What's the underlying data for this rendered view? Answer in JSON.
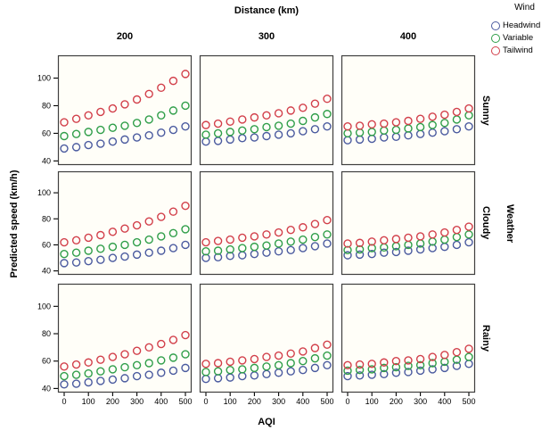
{
  "title": "Distance (km)",
  "legend": {
    "title": "Wind",
    "position": "top-right",
    "items": [
      {
        "label": "Headwind",
        "color": "#4a5a9f"
      },
      {
        "label": "Variable",
        "color": "#2f9e49"
      },
      {
        "label": "Tailwind",
        "color": "#d23f4a"
      }
    ]
  },
  "facets": {
    "column_variable": "Distance (km)",
    "columns": [
      200,
      300,
      400
    ],
    "row_variable": "Weather",
    "rows": [
      "Sunny",
      "Cloudy",
      "Rainy"
    ]
  },
  "axes": {
    "x_label": "AQI",
    "y_label": "Predicted speed (km/h)",
    "row_facet_label": "Weather",
    "x_ticks": [
      0,
      100,
      200,
      300,
      400,
      500
    ],
    "y_ticks": [
      40,
      60,
      80,
      100
    ]
  },
  "chart_data": {
    "type": "scatter",
    "title": "Distance (km)",
    "xlabel": "AQI",
    "ylabel": "Predicted speed (km/h)",
    "xlim": [
      0,
      500
    ],
    "ylim": [
      37,
      116.5
    ],
    "grid": false,
    "marker": "open-circle",
    "panel_bg": "#fffef8",
    "border_color": "#3f3f3f",
    "x": [
      0,
      50,
      100,
      150,
      200,
      250,
      300,
      350,
      400,
      450,
      500
    ],
    "panels": [
      {
        "row": "Sunny",
        "col": 200,
        "series": [
          {
            "name": "Headwind",
            "values": [
              49,
              50,
              51.5,
              52.5,
              54,
              55.5,
              57,
              58.5,
              60.5,
              62.5,
              65
            ]
          },
          {
            "name": "Variable",
            "values": [
              58,
              59.5,
              61,
              62.5,
              64,
              65.5,
              67.5,
              70,
              73,
              76.5,
              80
            ]
          },
          {
            "name": "Tailwind",
            "values": [
              68,
              70.5,
              73,
              75.5,
              78,
              81,
              84.5,
              88.5,
              93,
              98,
              103
            ]
          }
        ]
      },
      {
        "row": "Sunny",
        "col": 300,
        "series": [
          {
            "name": "Headwind",
            "values": [
              54,
              54.5,
              55.5,
              56.5,
              57,
              58,
              59,
              60,
              61.5,
              63,
              65
            ]
          },
          {
            "name": "Variable",
            "values": [
              59,
              60,
              61,
              62,
              63,
              64.5,
              65.5,
              67,
              69,
              71.5,
              74
            ]
          },
          {
            "name": "Tailwind",
            "values": [
              66,
              67,
              68.5,
              70,
              71.5,
              73,
              74.5,
              76.5,
              78.5,
              81.5,
              85
            ]
          }
        ]
      },
      {
        "row": "Sunny",
        "col": 400,
        "series": [
          {
            "name": "Headwind",
            "values": [
              55,
              55.5,
              56,
              57,
              57.5,
              58.5,
              59.5,
              60.5,
              61.5,
              63,
              65
            ]
          },
          {
            "name": "Variable",
            "values": [
              60,
              60.5,
              61,
              62,
              62.5,
              63.5,
              64.5,
              66,
              67.5,
              70,
              73
            ]
          },
          {
            "name": "Tailwind",
            "values": [
              65,
              65.5,
              66.5,
              67,
              68,
              69,
              70.5,
              72,
              73.5,
              75.5,
              78
            ]
          }
        ]
      },
      {
        "row": "Cloudy",
        "col": 200,
        "series": [
          {
            "name": "Headwind",
            "values": [
              46,
              46.5,
              47.5,
              48.5,
              50,
              51,
              52.5,
              54,
              55.5,
              57.5,
              60
            ]
          },
          {
            "name": "Variable",
            "values": [
              53,
              54,
              55.5,
              57,
              58.5,
              60,
              62,
              64,
              66.5,
              69,
              72
            ]
          },
          {
            "name": "Tailwind",
            "values": [
              62,
              63.5,
              65.5,
              67.5,
              70,
              72.5,
              75,
              78,
              81.5,
              85.5,
              90
            ]
          }
        ]
      },
      {
        "row": "Cloudy",
        "col": 300,
        "series": [
          {
            "name": "Headwind",
            "values": [
              50,
              50.5,
              51.5,
              52,
              53,
              54,
              55,
              56,
              57.5,
              59,
              61
            ]
          },
          {
            "name": "Variable",
            "values": [
              55,
              55.5,
              56.5,
              57.5,
              58.5,
              59.5,
              61,
              62.5,
              64,
              66,
              68
            ]
          },
          {
            "name": "Tailwind",
            "values": [
              62,
              63,
              64,
              65.5,
              66.5,
              68,
              69.5,
              71.5,
              73.5,
              76,
              79
            ]
          }
        ]
      },
      {
        "row": "Cloudy",
        "col": 400,
        "series": [
          {
            "name": "Headwind",
            "values": [
              52,
              52.5,
              53,
              54,
              54.5,
              55.5,
              56.5,
              57.5,
              58.5,
              60,
              62
            ]
          },
          {
            "name": "Variable",
            "values": [
              56,
              56.5,
              57.5,
              58,
              59,
              60,
              61,
              62.5,
              64,
              66,
              68
            ]
          },
          {
            "name": "Tailwind",
            "values": [
              61,
              61.5,
              62.5,
              63.5,
              64.5,
              65.5,
              66.5,
              68,
              69.5,
              71.5,
              74
            ]
          }
        ]
      },
      {
        "row": "Rainy",
        "col": 200,
        "series": [
          {
            "name": "Headwind",
            "values": [
              43,
              43.5,
              44.5,
              45.5,
              46.5,
              47.5,
              49,
              50,
              51.5,
              53,
              55
            ]
          },
          {
            "name": "Variable",
            "values": [
              49,
              50,
              51,
              52.5,
              54,
              55.5,
              57,
              58.5,
              60.5,
              62.5,
              65
            ]
          },
          {
            "name": "Tailwind",
            "values": [
              56,
              57.5,
              59,
              61,
              63,
              65,
              67.5,
              70,
              72.5,
              75.5,
              79
            ]
          }
        ]
      },
      {
        "row": "Rainy",
        "col": 300,
        "series": [
          {
            "name": "Headwind",
            "values": [
              47,
              47.5,
              48,
              49,
              49.5,
              50.5,
              51.5,
              52.5,
              53.5,
              55,
              57
            ]
          },
          {
            "name": "Variable",
            "values": [
              52,
              52.5,
              53.5,
              54,
              55,
              56,
              57,
              58.5,
              60,
              62,
              64
            ]
          },
          {
            "name": "Tailwind",
            "values": [
              58,
              58.5,
              59.5,
              60.5,
              61.5,
              63,
              64,
              65.5,
              67,
              69.5,
              72
            ]
          }
        ]
      },
      {
        "row": "Rainy",
        "col": 400,
        "series": [
          {
            "name": "Headwind",
            "values": [
              49,
              49.5,
              50,
              50.5,
              51.5,
              52,
              53,
              54,
              55,
              56.5,
              58
            ]
          },
          {
            "name": "Variable",
            "values": [
              53,
              53.5,
              54,
              55,
              55.5,
              56.5,
              57,
              58.5,
              59.5,
              61,
              63
            ]
          },
          {
            "name": "Tailwind",
            "values": [
              57,
              57.5,
              58,
              59,
              60,
              60.5,
              61.5,
              63,
              64.5,
              66.5,
              69
            ]
          }
        ]
      }
    ]
  }
}
